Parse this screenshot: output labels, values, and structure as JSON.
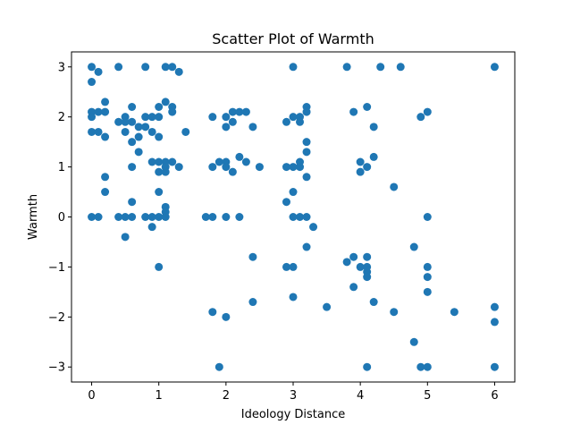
{
  "chart_data": {
    "type": "scatter",
    "title": "Scatter Plot of Warmth",
    "xlabel": "Ideology Distance",
    "ylabel": "Warmth",
    "xlim": [
      -0.3,
      6.3
    ],
    "ylim": [
      -3.3,
      3.3
    ],
    "xticks": [
      0,
      1,
      2,
      3,
      4,
      5,
      6
    ],
    "yticks": [
      -3,
      -2,
      -1,
      0,
      1,
      2,
      3
    ],
    "grid": false,
    "marker_color": "#1f77b4",
    "points": [
      [
        0,
        3
      ],
      [
        0.1,
        2.9
      ],
      [
        0,
        2.7
      ],
      [
        0.4,
        3
      ],
      [
        0.8,
        3
      ],
      [
        1.1,
        3
      ],
      [
        1.2,
        3
      ],
      [
        1.3,
        2.9
      ],
      [
        0,
        2.1
      ],
      [
        0.1,
        2.1
      ],
      [
        0.2,
        2.1
      ],
      [
        0,
        2
      ],
      [
        0.2,
        2.3
      ],
      [
        0,
        1.7
      ],
      [
        0.1,
        1.7
      ],
      [
        0.2,
        1.6
      ],
      [
        0.4,
        1.9
      ],
      [
        0.5,
        2
      ],
      [
        0.5,
        1.9
      ],
      [
        0.6,
        2.2
      ],
      [
        0.6,
        1.9
      ],
      [
        0.7,
        1.8
      ],
      [
        0.8,
        2
      ],
      [
        0.8,
        1.8
      ],
      [
        0.9,
        2
      ],
      [
        0.9,
        1.7
      ],
      [
        1,
        2.2
      ],
      [
        1,
        2
      ],
      [
        1.1,
        2.3
      ],
      [
        1.2,
        2.2
      ],
      [
        1.2,
        2.1
      ],
      [
        0.5,
        1.7
      ],
      [
        0.6,
        1.5
      ],
      [
        0.7,
        1.6
      ],
      [
        1,
        1.6
      ],
      [
        1.4,
        1.7
      ],
      [
        0.6,
        1
      ],
      [
        0.7,
        1.3
      ],
      [
        0.9,
        1.1
      ],
      [
        1,
        1.1
      ],
      [
        1,
        0.9
      ],
      [
        1.1,
        1.1
      ],
      [
        1.1,
        1
      ],
      [
        1.1,
        0.9
      ],
      [
        1.2,
        1.1
      ],
      [
        1.3,
        1
      ],
      [
        0.2,
        0.8
      ],
      [
        0.2,
        0.5
      ],
      [
        1,
        0.5
      ],
      [
        0.6,
        0.3
      ],
      [
        1.1,
        0.2
      ],
      [
        1.1,
        0.1
      ],
      [
        0,
        0
      ],
      [
        0.1,
        0
      ],
      [
        0.4,
        0
      ],
      [
        0.5,
        0
      ],
      [
        0.6,
        0
      ],
      [
        0.8,
        0
      ],
      [
        0.9,
        0
      ],
      [
        1,
        0
      ],
      [
        1.1,
        0
      ],
      [
        0.9,
        -0.2
      ],
      [
        0.5,
        -0.4
      ],
      [
        1,
        -1
      ],
      [
        1.7,
        0
      ],
      [
        1.8,
        0
      ],
      [
        2,
        0
      ],
      [
        2.2,
        0
      ],
      [
        1.8,
        2
      ],
      [
        2,
        2
      ],
      [
        2,
        1.8
      ],
      [
        2.1,
        2.1
      ],
      [
        2.1,
        1.9
      ],
      [
        2.2,
        2.1
      ],
      [
        2.3,
        2.1
      ],
      [
        2.4,
        1.8
      ],
      [
        1.8,
        1
      ],
      [
        1.9,
        1.1
      ],
      [
        2,
        1.1
      ],
      [
        2,
        1
      ],
      [
        2.1,
        0.9
      ],
      [
        2.2,
        1.2
      ],
      [
        2.3,
        1.1
      ],
      [
        2.5,
        1
      ],
      [
        2.4,
        -0.8
      ],
      [
        2.4,
        -1.7
      ],
      [
        1.8,
        -1.9
      ],
      [
        2,
        -2
      ],
      [
        1.9,
        -3
      ],
      [
        3,
        3
      ],
      [
        2.9,
        1.9
      ],
      [
        3,
        2
      ],
      [
        3.1,
        2
      ],
      [
        3.1,
        1.9
      ],
      [
        3.2,
        2.2
      ],
      [
        3.2,
        2.1
      ],
      [
        3.2,
        1.5
      ],
      [
        3.2,
        1.3
      ],
      [
        2.9,
        1
      ],
      [
        3,
        1
      ],
      [
        3.1,
        1
      ],
      [
        3.1,
        1.1
      ],
      [
        3.2,
        0.8
      ],
      [
        3,
        0.5
      ],
      [
        2.9,
        0.3
      ],
      [
        3,
        0
      ],
      [
        3.1,
        0
      ],
      [
        3.2,
        0
      ],
      [
        3.3,
        -0.2
      ],
      [
        3.2,
        -0.6
      ],
      [
        2.9,
        -1
      ],
      [
        3,
        -1
      ],
      [
        3,
        -1.6
      ],
      [
        3.5,
        -1.8
      ],
      [
        3.8,
        3
      ],
      [
        4.3,
        3
      ],
      [
        4.6,
        3
      ],
      [
        3.9,
        2.1
      ],
      [
        4.1,
        2.2
      ],
      [
        4.2,
        1.8
      ],
      [
        4,
        1.1
      ],
      [
        4.1,
        1
      ],
      [
        4,
        0.9
      ],
      [
        4.2,
        1.2
      ],
      [
        4.5,
        0.6
      ],
      [
        3.8,
        -0.9
      ],
      [
        3.9,
        -0.8
      ],
      [
        4,
        -1
      ],
      [
        4.1,
        -0.8
      ],
      [
        4.1,
        -1
      ],
      [
        4.1,
        -1.1
      ],
      [
        4.1,
        -1.2
      ],
      [
        3.9,
        -1.4
      ],
      [
        4.2,
        -1.7
      ],
      [
        4.5,
        -1.9
      ],
      [
        4.1,
        -3
      ],
      [
        4.8,
        -0.6
      ],
      [
        4.8,
        -2.5
      ],
      [
        4.9,
        -3
      ],
      [
        5,
        -3
      ],
      [
        4.9,
        2
      ],
      [
        5,
        2.1
      ],
      [
        5,
        0
      ],
      [
        5,
        -1
      ],
      [
        5,
        -1.2
      ],
      [
        5,
        -1.5
      ],
      [
        5.4,
        -1.9
      ],
      [
        6,
        3
      ],
      [
        6,
        -1.8
      ],
      [
        6,
        -2.1
      ],
      [
        6,
        -3
      ]
    ]
  }
}
